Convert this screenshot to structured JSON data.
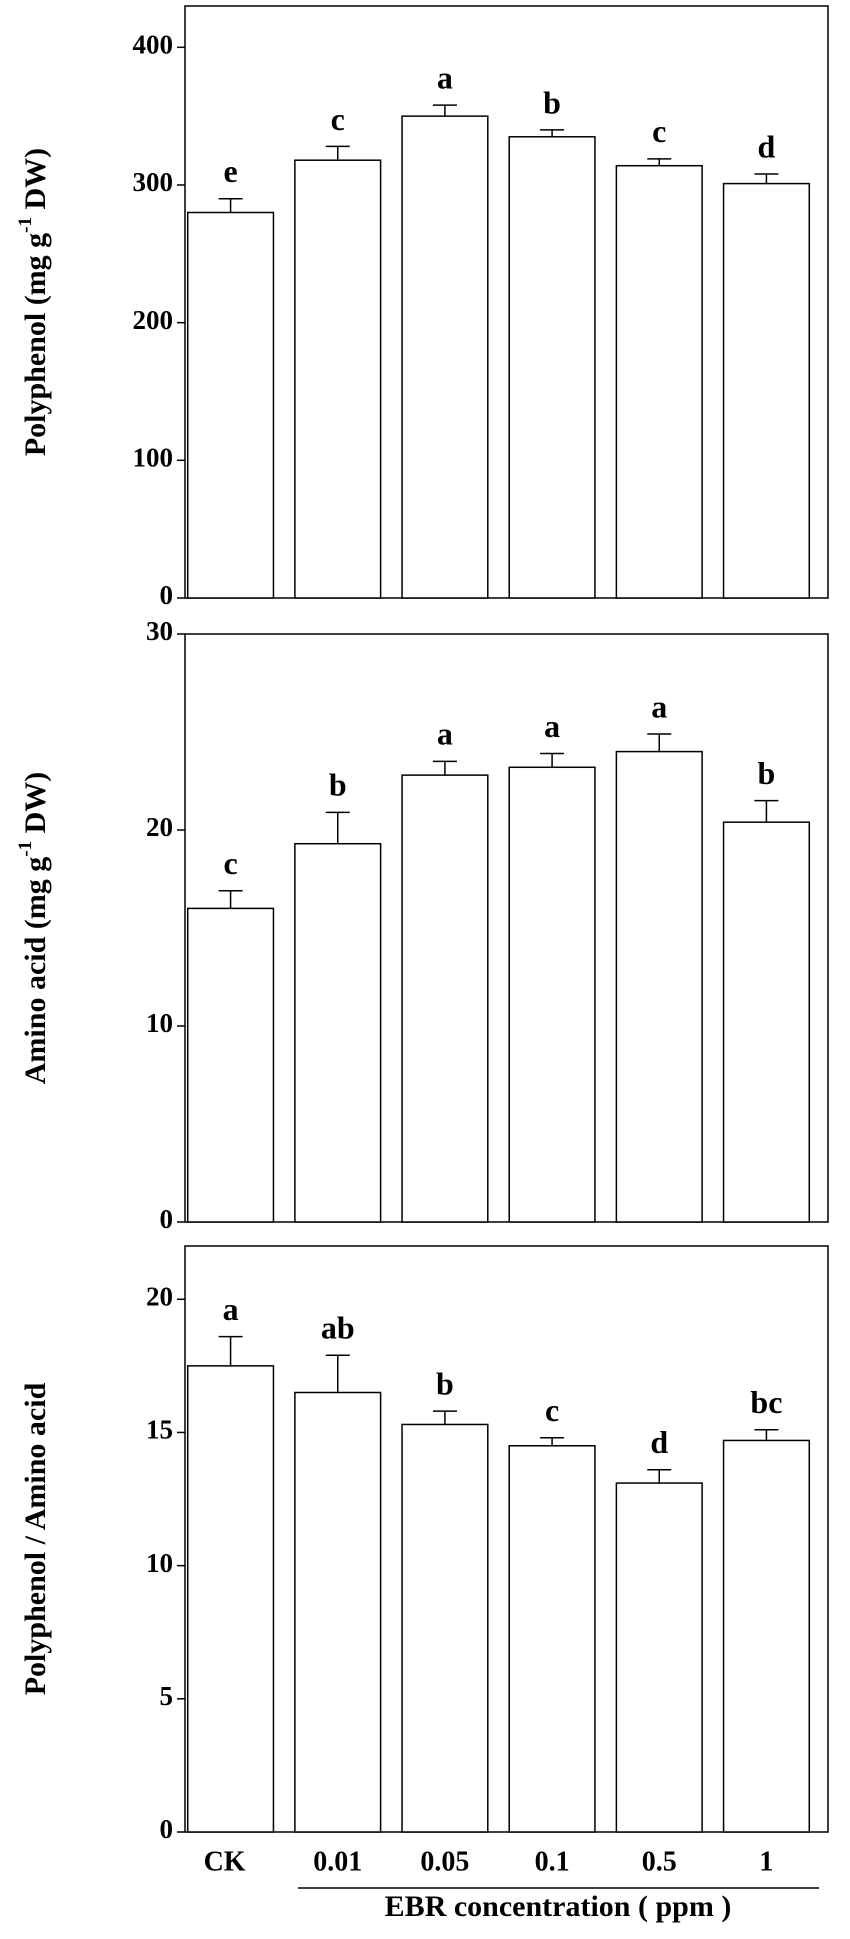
{
  "chart_data": [
    {
      "type": "bar",
      "ylabel_parts": [
        "Polyphenol (mg g",
        "-1",
        " DW)"
      ],
      "values": [
        280,
        318,
        350,
        335,
        314,
        301
      ],
      "errors": [
        10,
        10,
        8,
        5,
        5,
        7
      ],
      "annotations": [
        "e",
        "c",
        "a",
        "b",
        "c",
        "d"
      ],
      "ylim": [
        0,
        430
      ],
      "yticks": [
        0,
        100,
        200,
        300,
        400
      ],
      "color": "#ffffff"
    },
    {
      "type": "bar",
      "ylabel_parts": [
        "Amino acid (mg g",
        "-1",
        " DW)"
      ],
      "values": [
        16,
        19.3,
        22.8,
        23.2,
        24,
        20.4
      ],
      "errors": [
        0.9,
        1.6,
        0.7,
        0.7,
        0.9,
        1.1
      ],
      "annotations": [
        "c",
        "b",
        "a",
        "a",
        "a",
        "b"
      ],
      "ylim": [
        0,
        30
      ],
      "yticks": [
        0,
        10,
        20,
        30
      ],
      "color": "#ffffff"
    },
    {
      "type": "bar",
      "ylabel_parts": [
        "Polyphenol  / Amino acid"
      ],
      "categories": [
        "CK",
        "0.01",
        "0.05",
        "0.1",
        "0.5",
        "1"
      ],
      "xlabel": "EBR concentration ( ppm )",
      "values": [
        17.5,
        16.5,
        15.3,
        14.5,
        13.1,
        14.7
      ],
      "errors": [
        1.1,
        1.4,
        0.5,
        0.3,
        0.5,
        0.4
      ],
      "annotations": [
        "a",
        "ab",
        "b",
        "c",
        "d",
        "bc"
      ],
      "ylim": [
        0,
        22
      ],
      "yticks": [
        0,
        5,
        10,
        15,
        20
      ],
      "color": "#ffffff"
    }
  ]
}
